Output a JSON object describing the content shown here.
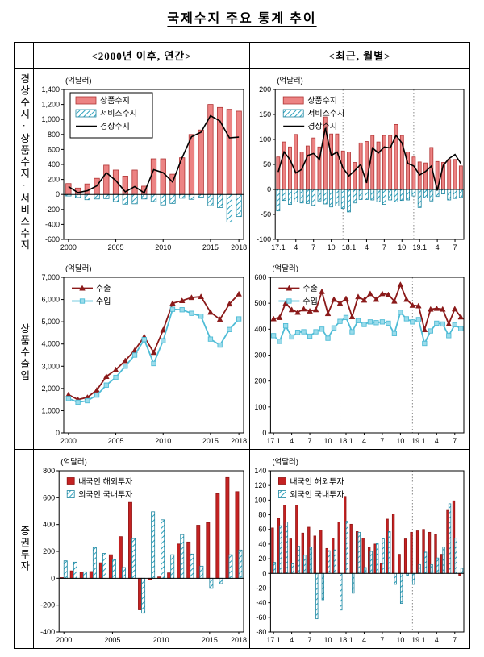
{
  "title": "국제수지 주요 통계 추이",
  "columns": [
    "<2000년 이후, 연간>",
    "<최근, 월별>"
  ],
  "rows": [
    {
      "label": "경상수지·상품수지·서비스수지"
    },
    {
      "label": "상품수출입"
    },
    {
      "label": "증권투자"
    }
  ],
  "colors": {
    "goods_bar_fill": "#EC8383",
    "goods_bar_stroke": "#B03434",
    "hatch_stroke": "#1E86A0",
    "hatch_line": "#2EA3BE",
    "current_line": "#000000",
    "export_line": "#8B1A1A",
    "import_line": "#4FBCD6",
    "import_marker_fill": "#9BDCEB",
    "resident_bar": "#C42222",
    "resident_bar_stroke": "#911414",
    "axis": "#000000",
    "separator": "#888888"
  },
  "chart_data": [
    {
      "id": "bop-annual",
      "type": "bar",
      "unit": "(억달러)",
      "ylim": [
        -600,
        1400
      ],
      "ystep": 200,
      "bar_mode": "overlay",
      "legend_box": true,
      "legend_position": "top-left",
      "grid": false,
      "categories": [
        "2000",
        "2001",
        "2002",
        "2003",
        "2004",
        "2005",
        "2006",
        "2007",
        "2008",
        "2009",
        "2010",
        "2011",
        "2012",
        "2013",
        "2014",
        "2015",
        "2016",
        "2017",
        "2018"
      ],
      "xticks": [
        {
          "i": 0,
          "label": "2000"
        },
        {
          "i": 5,
          "label": "2005"
        },
        {
          "i": 10,
          "label": "2010"
        },
        {
          "i": 15,
          "label": "2015"
        },
        {
          "i": 18,
          "label": "2018"
        }
      ],
      "separators": [],
      "series": [
        {
          "name": "상품수지",
          "kind": "bar",
          "style": "salmon",
          "swatch": "bar",
          "values": [
            145,
            85,
            140,
            215,
            390,
            325,
            245,
            325,
            110,
            475,
            475,
            270,
            490,
            800,
            860,
            1200,
            1160,
            1135,
            1110
          ]
        },
        {
          "name": "서비스수지",
          "kind": "bar",
          "style": "hatch",
          "swatch": "bar",
          "values": [
            -20,
            -40,
            -70,
            -60,
            -55,
            -95,
            -130,
            -125,
            -60,
            -95,
            -140,
            -120,
            -50,
            -65,
            -35,
            -150,
            -175,
            -370,
            -295
          ]
        },
        {
          "name": "경상수지",
          "kind": "line",
          "style": "black",
          "swatch": "line",
          "values": [
            105,
            25,
            50,
            115,
            290,
            185,
            35,
            105,
            20,
            330,
            290,
            165,
            490,
            770,
            830,
            1050,
            980,
            755,
            765
          ]
        }
      ]
    },
    {
      "id": "bop-monthly",
      "type": "bar",
      "unit": "(억달러)",
      "ylim": [
        -100,
        200
      ],
      "ystep": 50,
      "bar_mode": "overlay",
      "legend_box": false,
      "legend_position": "top-left",
      "grid": false,
      "categories": [
        "17.1",
        "17.2",
        "17.3",
        "17.4",
        "17.5",
        "17.6",
        "17.7",
        "17.8",
        "17.9",
        "17.10",
        "17.11",
        "17.12",
        "18.1",
        "18.2",
        "18.3",
        "18.4",
        "18.5",
        "18.6",
        "18.7",
        "18.8",
        "18.9",
        "18.10",
        "18.11",
        "18.12",
        "19.1",
        "19.2",
        "19.3",
        "19.4",
        "19.5",
        "19.6",
        "19.7",
        "19.8"
      ],
      "xticks": [
        {
          "i": 0,
          "label": "17.1"
        },
        {
          "i": 3,
          "label": "4"
        },
        {
          "i": 6,
          "label": "7"
        },
        {
          "i": 9,
          "label": "10"
        },
        {
          "i": 12,
          "label": "18.1"
        },
        {
          "i": 15,
          "label": "4"
        },
        {
          "i": 18,
          "label": "7"
        },
        {
          "i": 21,
          "label": "10"
        },
        {
          "i": 24,
          "label": "19.1"
        },
        {
          "i": 27,
          "label": "4"
        },
        {
          "i": 30,
          "label": "7"
        }
      ],
      "separators": [
        11.5,
        23.5
      ],
      "series": [
        {
          "name": "상품수지",
          "kind": "bar",
          "style": "salmon",
          "swatch": "bar",
          "values": [
            65,
            95,
            85,
            110,
            75,
            87,
            103,
            85,
            145,
            111,
            111,
            77,
            75,
            54,
            93,
            96,
            108,
            95,
            108,
            108,
            130,
            108,
            75,
            65,
            55,
            53,
            84,
            56,
            54,
            60,
            60,
            47
          ]
        },
        {
          "name": "서비스수지",
          "kind": "bar",
          "style": "hatch",
          "swatch": "bar",
          "values": [
            -43,
            -22,
            -30,
            -25,
            -27,
            -28,
            -32,
            -23,
            -29,
            -35,
            -33,
            -38,
            -45,
            -27,
            -20,
            -20,
            -21,
            -25,
            -30,
            -21,
            -25,
            -22,
            -21,
            -13,
            -36,
            -17,
            -23,
            -14,
            -9,
            -21,
            -18,
            -16
          ]
        },
        {
          "name": "경상수지",
          "kind": "line",
          "style": "black",
          "swatch": "line",
          "values": [
            35,
            75,
            60,
            33,
            40,
            68,
            72,
            60,
            123,
            68,
            75,
            43,
            27,
            38,
            50,
            13,
            83,
            73,
            85,
            83,
            108,
            93,
            52,
            47,
            29,
            36,
            47,
            -2,
            48,
            62,
            70,
            52
          ]
        }
      ]
    },
    {
      "id": "trade-annual",
      "type": "line",
      "unit": "(억달러)",
      "ylim": [
        0,
        7000
      ],
      "ystep": 1000,
      "bar_mode": "overlay",
      "legend_box": false,
      "legend_position": "top-left",
      "grid": false,
      "categories": [
        "2000",
        "2001",
        "2002",
        "2003",
        "2004",
        "2005",
        "2006",
        "2007",
        "2008",
        "2009",
        "2010",
        "2011",
        "2012",
        "2013",
        "2014",
        "2015",
        "2016",
        "2017",
        "2018"
      ],
      "xticks": [
        {
          "i": 0,
          "label": "2000"
        },
        {
          "i": 5,
          "label": "2005"
        },
        {
          "i": 10,
          "label": "2010"
        },
        {
          "i": 15,
          "label": "2015"
        },
        {
          "i": 18,
          "label": "2018"
        }
      ],
      "separators": [],
      "series": [
        {
          "name": "수출",
          "kind": "line",
          "style": "darkred",
          "swatch": "line",
          "values": [
            1720,
            1500,
            1600,
            1930,
            2540,
            2840,
            3250,
            3720,
            4330,
            3620,
            4630,
            5830,
            5950,
            6090,
            6130,
            5430,
            5110,
            5800,
            6250
          ]
        },
        {
          "name": "수입",
          "kind": "line",
          "style": "ltblue",
          "swatch": "line",
          "values": [
            1550,
            1380,
            1450,
            1700,
            2150,
            2500,
            3000,
            3500,
            4200,
            3120,
            4150,
            5560,
            5540,
            5380,
            5250,
            4220,
            3950,
            4650,
            5130
          ]
        }
      ]
    },
    {
      "id": "trade-monthly",
      "type": "line",
      "unit": "(억달러)",
      "ylim": [
        0,
        600
      ],
      "ystep": 100,
      "bar_mode": "overlay",
      "legend_box": false,
      "legend_position": "top-left",
      "grid": false,
      "categories": [
        "17.1",
        "17.2",
        "17.3",
        "17.4",
        "17.5",
        "17.6",
        "17.7",
        "17.8",
        "17.9",
        "17.10",
        "17.11",
        "17.12",
        "18.1",
        "18.2",
        "18.3",
        "18.4",
        "18.5",
        "18.6",
        "18.7",
        "18.8",
        "18.9",
        "18.10",
        "18.11",
        "18.12",
        "19.1",
        "19.2",
        "19.3",
        "19.4",
        "19.5",
        "19.6",
        "19.7",
        "19.8"
      ],
      "xticks": [
        {
          "i": 0,
          "label": "17.1"
        },
        {
          "i": 3,
          "label": "4"
        },
        {
          "i": 6,
          "label": "7"
        },
        {
          "i": 9,
          "label": "10"
        },
        {
          "i": 12,
          "label": "18.1"
        },
        {
          "i": 15,
          "label": "4"
        },
        {
          "i": 18,
          "label": "7"
        },
        {
          "i": 21,
          "label": "10"
        },
        {
          "i": 24,
          "label": "19.1"
        },
        {
          "i": 27,
          "label": "4"
        },
        {
          "i": 30,
          "label": "7"
        }
      ],
      "separators": [
        11.5,
        23.5
      ],
      "series": [
        {
          "name": "수출",
          "kind": "line",
          "style": "darkred",
          "swatch": "line",
          "values": [
            440,
            445,
            500,
            475,
            465,
            478,
            470,
            475,
            545,
            460,
            515,
            500,
            518,
            448,
            525,
            512,
            537,
            515,
            537,
            533,
            508,
            572,
            515,
            492,
            490,
            398,
            477,
            480,
            477,
            420,
            478,
            447
          ]
        },
        {
          "name": "수입",
          "kind": "line",
          "style": "ltblue",
          "swatch": "line",
          "values": [
            375,
            353,
            413,
            370,
            388,
            390,
            373,
            390,
            400,
            365,
            405,
            430,
            445,
            390,
            433,
            418,
            428,
            425,
            428,
            423,
            383,
            465,
            440,
            428,
            437,
            345,
            393,
            423,
            420,
            375,
            417,
            402
          ]
        }
      ]
    },
    {
      "id": "securities-annual",
      "type": "bar",
      "unit": "(억달러)",
      "ylim": [
        -400,
        800
      ],
      "ystep": 200,
      "bar_mode": "group",
      "legend_box": false,
      "legend_position": "top-left",
      "grid": false,
      "categories": [
        "2000",
        "2001",
        "2002",
        "2003",
        "2004",
        "2005",
        "2006",
        "2007",
        "2008",
        "2009",
        "2010",
        "2011",
        "2012",
        "2013",
        "2014",
        "2015",
        "2016",
        "2017",
        "2018"
      ],
      "xticks": [
        {
          "i": 0,
          "label": "2000"
        },
        {
          "i": 5,
          "label": "2005"
        },
        {
          "i": 10,
          "label": "2010"
        },
        {
          "i": 15,
          "label": "2015"
        },
        {
          "i": 18,
          "label": "2018"
        }
      ],
      "separators": [],
      "series": [
        {
          "name": "내국인 해외투자",
          "kind": "bar",
          "style": "red",
          "swatch": "square",
          "values": [
            5,
            55,
            45,
            50,
            115,
            175,
            310,
            565,
            -235,
            -10,
            10,
            40,
            255,
            270,
            395,
            415,
            630,
            750,
            645
          ]
        },
        {
          "name": "외국인 국내투자",
          "kind": "bar",
          "style": "hatch",
          "swatch": "square",
          "values": [
            130,
            120,
            48,
            230,
            185,
            140,
            80,
            295,
            -260,
            495,
            435,
            175,
            325,
            180,
            90,
            -75,
            -40,
            175,
            210
          ]
        }
      ]
    },
    {
      "id": "securities-monthly",
      "type": "bar",
      "unit": "(억달러)",
      "ylim": [
        -80,
        140
      ],
      "ystep": 20,
      "bar_mode": "group",
      "legend_box": false,
      "legend_position": "top-left",
      "grid": false,
      "categories": [
        "17.1",
        "17.2",
        "17.3",
        "17.4",
        "17.5",
        "17.6",
        "17.7",
        "17.8",
        "17.9",
        "17.10",
        "17.11",
        "17.12",
        "18.1",
        "18.2",
        "18.3",
        "18.4",
        "18.5",
        "18.6",
        "18.7",
        "18.8",
        "18.9",
        "18.10",
        "18.11",
        "18.12",
        "19.1",
        "19.2",
        "19.3",
        "19.4",
        "19.5",
        "19.6",
        "19.7",
        "19.8"
      ],
      "xticks": [
        {
          "i": 0,
          "label": "17.1"
        },
        {
          "i": 3,
          "label": "4"
        },
        {
          "i": 6,
          "label": "7"
        },
        {
          "i": 9,
          "label": "10"
        },
        {
          "i": 12,
          "label": "18.1"
        },
        {
          "i": 15,
          "label": "4"
        },
        {
          "i": 18,
          "label": "7"
        },
        {
          "i": 21,
          "label": "10"
        },
        {
          "i": 24,
          "label": "19.1"
        },
        {
          "i": 27,
          "label": "4"
        },
        {
          "i": 30,
          "label": "7"
        }
      ],
      "separators": [
        11.5,
        23.5
      ],
      "series": [
        {
          "name": "내국인 해외투자",
          "kind": "bar",
          "style": "red",
          "swatch": "square",
          "values": [
            62,
            75,
            93,
            47,
            93,
            55,
            63,
            51,
            59,
            34,
            48,
            70,
            105,
            67,
            57,
            48,
            36,
            40,
            13,
            74,
            81,
            26,
            47,
            56,
            58,
            60,
            56,
            53,
            26,
            86,
            99,
            -3
          ]
        },
        {
          "name": "외국인 국내투자",
          "kind": "bar",
          "style": "hatch",
          "swatch": "square",
          "values": [
            15,
            65,
            70,
            13,
            37,
            25,
            36,
            -62,
            -36,
            31,
            32,
            -50,
            71,
            -27,
            56,
            8,
            30,
            41,
            47,
            57,
            -15,
            -41,
            -3,
            -15,
            12,
            29,
            12,
            21,
            36,
            95,
            48,
            7
          ]
        }
      ]
    }
  ]
}
